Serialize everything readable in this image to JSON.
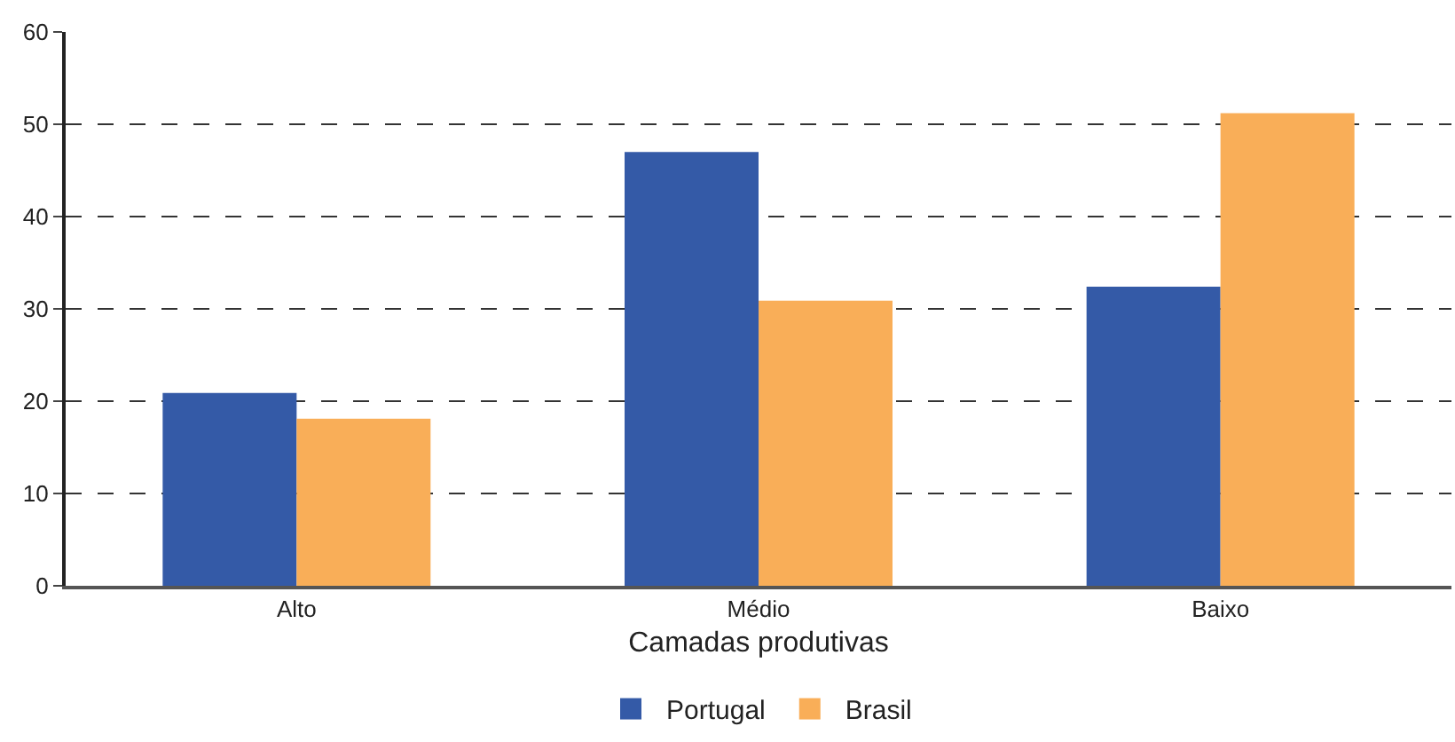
{
  "chart_data": {
    "type": "bar",
    "xlabel": "Camadas produtivas",
    "categories": [
      "Alto",
      "Médio",
      "Baixo"
    ],
    "series": [
      {
        "name": "Portugal",
        "color": "#345aa7",
        "values": [
          20.9,
          47.0,
          32.4
        ]
      },
      {
        "name": "Brasil",
        "color": "#f9ae58",
        "values": [
          18.1,
          30.9,
          51.2
        ]
      }
    ],
    "ylim": [
      0,
      60
    ],
    "yticks": [
      0,
      10,
      20,
      30,
      40,
      50,
      60
    ],
    "grid": "y",
    "legend": "bottom"
  }
}
